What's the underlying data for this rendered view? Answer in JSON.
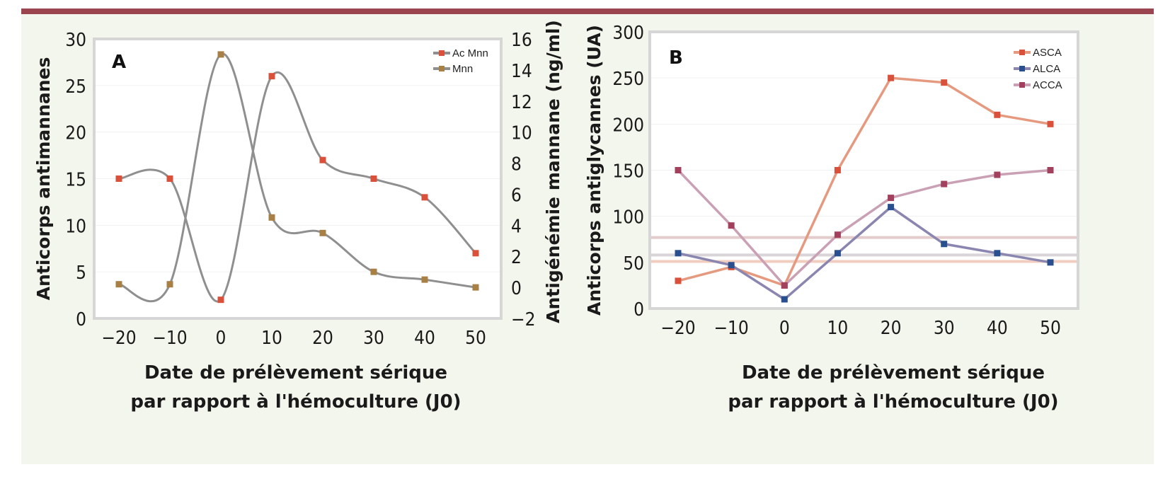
{
  "figure": {
    "header_color": "#9a4550",
    "background_color": "#f3f6ec"
  },
  "chart_data": [
    {
      "id": "A",
      "type": "line",
      "panel_label": "A",
      "x": [
        -20,
        -10,
        0,
        10,
        20,
        30,
        40,
        50
      ],
      "x_tick_labels": [
        "-20",
        "-10",
        "0",
        "10",
        "20",
        "30",
        "40",
        "50"
      ],
      "xlabel": [
        "Date de prélèvement sérique",
        "par rapport à l'hémoculture (J0)"
      ],
      "ylabel": "Anticorps antimannanes",
      "ylim": [
        0,
        30
      ],
      "y_ticks": [
        0,
        5,
        10,
        15,
        20,
        25,
        30
      ],
      "y2label": "Antigénémie mannane (ng/ml)",
      "y2lim": [
        -2,
        16
      ],
      "y2_ticks": [
        -2,
        0,
        2,
        4,
        6,
        8,
        10,
        12,
        14,
        16
      ],
      "smooth": true,
      "legend_position": "top-right",
      "series": [
        {
          "name": "Ac Mnn",
          "axis": "left",
          "marker_color": "#d9513a",
          "line_color": "#8f8f8f",
          "values": [
            15,
            15,
            2,
            26,
            17,
            15,
            13,
            7
          ]
        },
        {
          "name": "Mnn",
          "axis": "right",
          "marker_color": "#a87f45",
          "line_color": "#8f8f8f",
          "values": [
            0.2,
            0.2,
            15,
            4.5,
            3.5,
            1,
            0.5,
            0
          ]
        }
      ]
    },
    {
      "id": "B",
      "type": "line",
      "panel_label": "B",
      "x": [
        -20,
        -10,
        0,
        10,
        20,
        30,
        40,
        50
      ],
      "x_tick_labels": [
        "-20",
        "-10",
        "0",
        "10",
        "20",
        "30",
        "40",
        "50"
      ],
      "xlabel": [
        "Date de prélèvement sérique",
        "par rapport à l'hémoculture (J0)"
      ],
      "ylabel": "Anticorps antiglycannes (UA)",
      "ylim": [
        0,
        300
      ],
      "y_ticks": [
        0,
        50,
        100,
        150,
        200,
        250,
        300
      ],
      "smooth": false,
      "legend_position": "top-right",
      "reference_lines": [
        {
          "value": 77,
          "color": "#e4cccc"
        },
        {
          "value": 58,
          "color": "#d8d4d8"
        },
        {
          "value": 51,
          "color": "#f1cdbf"
        }
      ],
      "series": [
        {
          "name": "ASCA",
          "marker_color": "#d9513a",
          "line_color": "#e59a80",
          "values": [
            30,
            45,
            25,
            150,
            250,
            245,
            210,
            200
          ]
        },
        {
          "name": "ALCA",
          "marker_color": "#2a4f8f",
          "line_color": "#8a86b0",
          "values": [
            60,
            47,
            10,
            60,
            110,
            70,
            60,
            50
          ]
        },
        {
          "name": "ACCA",
          "marker_color": "#a3405e",
          "line_color": "#c9a0b4",
          "values": [
            150,
            90,
            25,
            80,
            120,
            135,
            145,
            150
          ]
        }
      ]
    }
  ]
}
